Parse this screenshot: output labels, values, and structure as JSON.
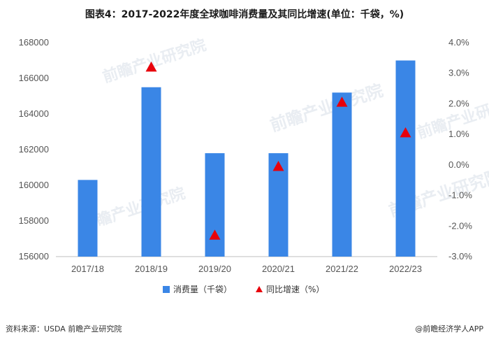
{
  "chart_data": {
    "type": "bar",
    "title": "图表4：2017-2022年度全球咖啡消费量及其同比增速(单位：千袋，%)",
    "categories": [
      "2017/18",
      "2018/19",
      "2019/20",
      "2020/21",
      "2021/22",
      "2022/23"
    ],
    "series": [
      {
        "name": "消费量（千袋）",
        "type": "bar",
        "axis": "left",
        "values": [
          160300,
          165500,
          161800,
          161800,
          165200,
          167000
        ]
      },
      {
        "name": "同比增速（%）",
        "type": "marker",
        "axis": "right",
        "values": [
          null,
          3.2,
          -2.3,
          -0.05,
          2.05,
          1.05
        ]
      }
    ],
    "y_left": {
      "min": 156000,
      "max": 168000,
      "ticks": [
        "168000",
        "166000",
        "164000",
        "162000",
        "160000",
        "158000",
        "156000"
      ]
    },
    "y_right": {
      "min": -3.0,
      "max": 4.0,
      "ticks": [
        "4.0%",
        "3.0%",
        "2.0%",
        "1.0%",
        "0.0%",
        "-1.0%",
        "-2.0%",
        "-3.0%"
      ]
    },
    "legend_position": "bottom",
    "grid": false,
    "colors": {
      "bar": "#3a86e6",
      "marker": "#e8000b"
    }
  },
  "footer": {
    "source": "资料来源：USDA 前瞻产业研究院",
    "brand": "@前瞻经济学人APP"
  },
  "watermark": "前瞻产业研究院"
}
